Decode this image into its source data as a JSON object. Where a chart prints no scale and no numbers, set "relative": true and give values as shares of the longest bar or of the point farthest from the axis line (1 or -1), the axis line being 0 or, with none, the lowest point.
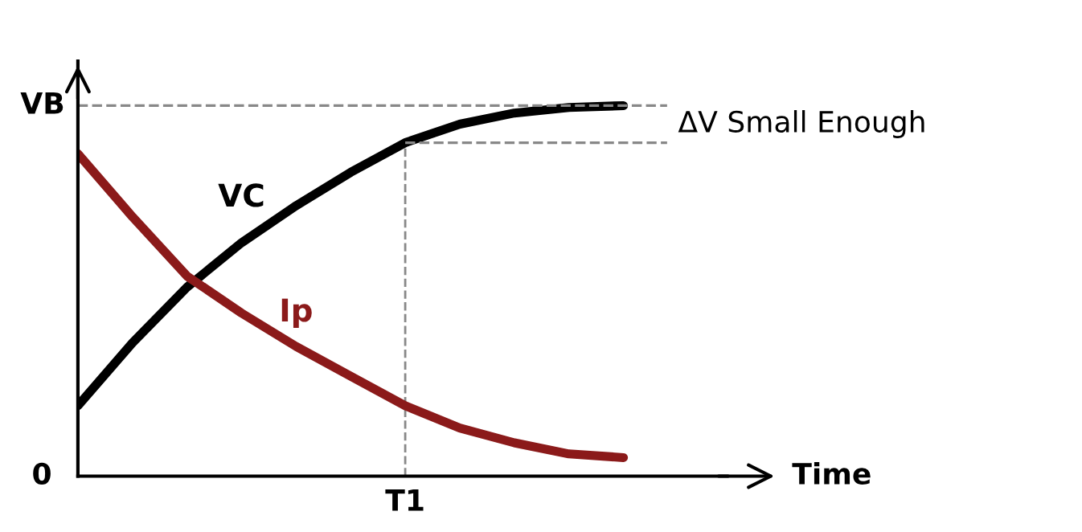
{
  "chart_data": {
    "type": "line",
    "relative": true,
    "xlabel": "Time",
    "categories": [
      null,
      null,
      null,
      null,
      null,
      null,
      null,
      null,
      null,
      null,
      null
    ],
    "series": [
      {
        "name": "VC",
        "color": "#000000",
        "values": [
          0.19,
          0.36,
          0.51,
          0.63,
          0.73,
          0.82,
          0.9,
          0.95,
          0.98,
          0.995,
          1.0
        ]
      },
      {
        "name": "Ip",
        "color": "#8b1a1a",
        "values": [
          0.87,
          0.7,
          0.54,
          0.44,
          0.35,
          0.27,
          0.19,
          0.13,
          0.09,
          0.06,
          0.05
        ]
      }
    ],
    "ref_lines": [
      {
        "axis": "y",
        "value": 1.0,
        "label": "VB",
        "color": "#888888",
        "line_style": "dashed"
      },
      {
        "axis": "y",
        "value": 0.9,
        "color": "#888888",
        "line_style": "dashed"
      }
    ],
    "annotations": [
      "0",
      "T1",
      "ΔV Small Enough"
    ],
    "marker": "none",
    "line_style": "solid"
  }
}
